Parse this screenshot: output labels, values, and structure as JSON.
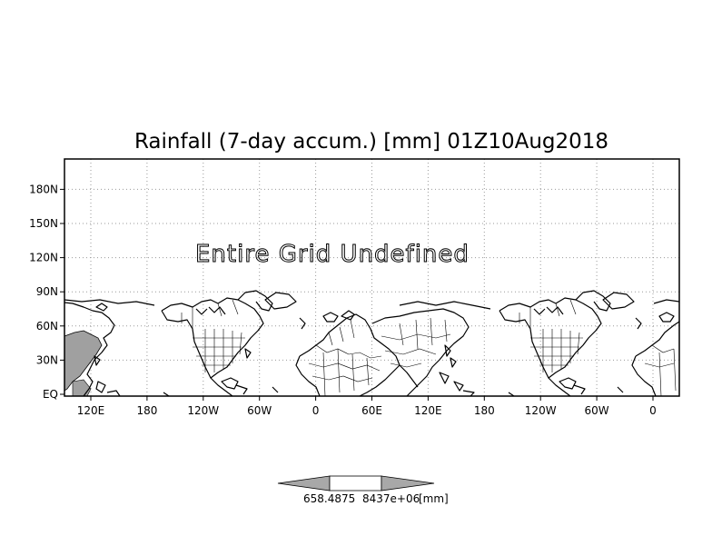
{
  "title": "Rainfall (7-day accum.) [mm] 01Z10Aug2018",
  "message": "Entire Grid Undefined",
  "x_ticks": [
    "120E",
    "180",
    "120W",
    "60W",
    "0",
    "60E",
    "120E",
    "180",
    "120W",
    "60W",
    "0"
  ],
  "y_ticks": [
    "EQ",
    "30N",
    "60N",
    "90N",
    "120N",
    "150N",
    "180N"
  ],
  "colorbar": {
    "label": "658.4875",
    "label_overlap": "8437e+06",
    "units": "[mm]"
  },
  "colors": {
    "shaded_region": "#a0a0a0",
    "colorbar_arrows": "#a8a8a8",
    "colorbar_center": "#ffffff"
  }
}
